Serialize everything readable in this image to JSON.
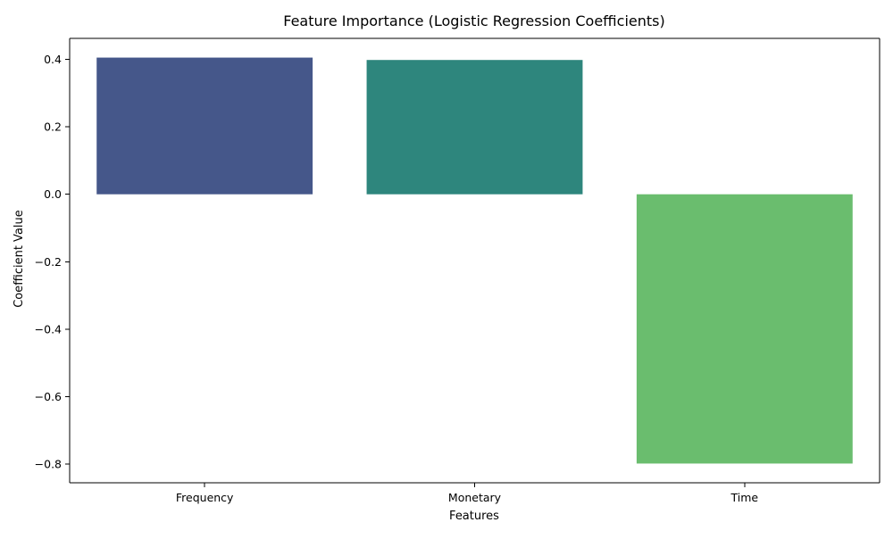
{
  "chart_data": {
    "type": "bar",
    "title": "Feature Importance (Logistic Regression Coefficients)",
    "xlabel": "Features",
    "ylabel": "Coefficient Value",
    "categories": [
      "Frequency",
      "Monetary",
      "Time"
    ],
    "values": [
      0.405,
      0.398,
      -0.798
    ],
    "colors": [
      "#45578a",
      "#2e867d",
      "#6abd6e"
    ],
    "ylim": [
      -0.855,
      0.462
    ],
    "yticks": [
      -0.8,
      -0.6,
      -0.4,
      -0.2,
      0.0,
      0.2,
      0.4
    ],
    "ytick_labels": [
      "−0.8",
      "−0.6",
      "−0.4",
      "−0.2",
      "0.0",
      "0.2",
      "0.4"
    ],
    "grid": false,
    "legend": "none"
  }
}
